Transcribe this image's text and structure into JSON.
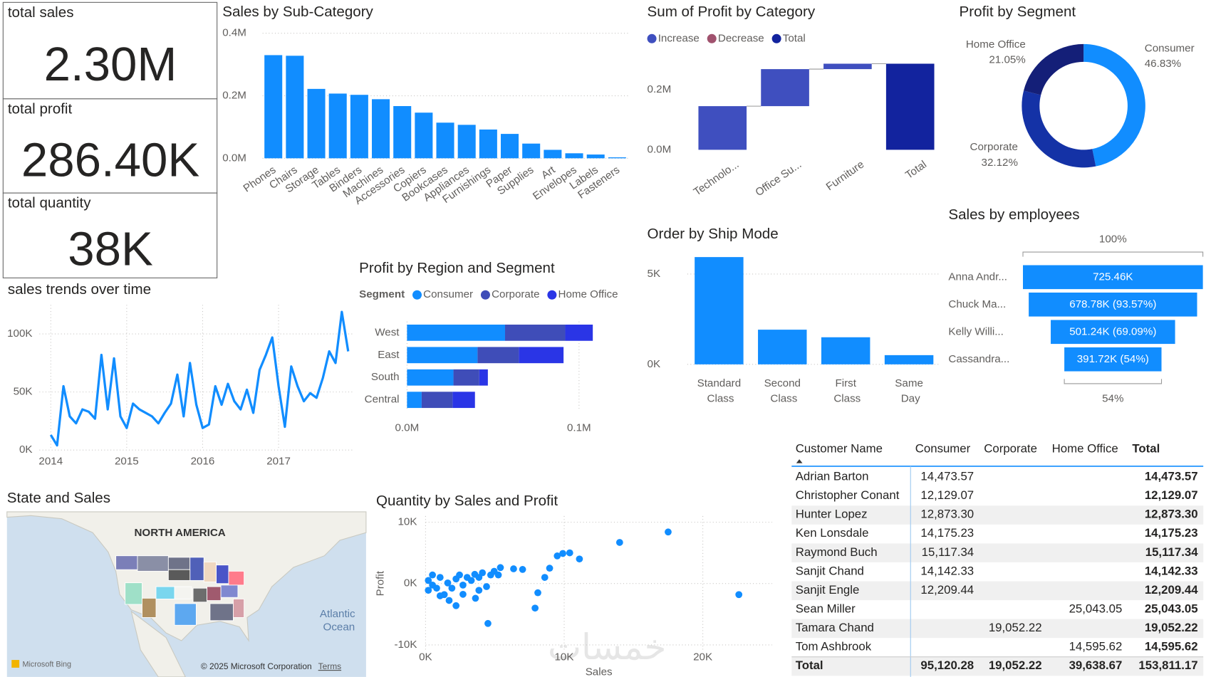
{
  "cards": [
    {
      "label": "total sales",
      "value": "2.30M"
    },
    {
      "label": "total profit",
      "value": "286.40K"
    },
    {
      "label": "total quantity",
      "value": "38K"
    }
  ],
  "watermark": "خمسات",
  "chart_data": [
    {
      "type": "bar",
      "title": "Sales by Sub-Category",
      "color": "#118dff",
      "grid": true,
      "categories": [
        "Phones",
        "Chairs",
        "Storage",
        "Tables",
        "Binders",
        "Machines",
        "Accessories",
        "Copiers",
        "Bookcases",
        "Appliances",
        "Furnishings",
        "Paper",
        "Supplies",
        "Art",
        "Envelopes",
        "Labels",
        "Fasteners"
      ],
      "values": [
        330000,
        328000,
        222000,
        207000,
        203000,
        189000,
        167000,
        146000,
        114000,
        107000,
        92000,
        78000,
        47000,
        27000,
        16000,
        12000,
        3000
      ],
      "ylim": [
        0,
        400000
      ],
      "yticks": [
        {
          "value": 0,
          "label": "0.0M"
        },
        {
          "value": 200000,
          "label": "0.2M"
        },
        {
          "value": 400000,
          "label": "0.4M"
        }
      ]
    },
    {
      "type": "waterfall",
      "title": "Sum of Profit by Category",
      "grid": false,
      "legend": [
        {
          "name": "Increase",
          "color": "#3f4fbf"
        },
        {
          "name": "Decrease",
          "color": "#a0526e"
        },
        {
          "name": "Total",
          "color": "#12239e"
        }
      ],
      "categories": [
        "Technolo...",
        "Office Su...",
        "Furniture",
        "Total"
      ],
      "values": [
        145000,
        123000,
        18000,
        286000
      ],
      "ylim": [
        0,
        300000
      ],
      "yticks": [
        {
          "value": 0,
          "label": "0.0M"
        },
        {
          "value": 200000,
          "label": "0.2M"
        }
      ]
    },
    {
      "type": "donut",
      "title": "Profit by Segment",
      "categories": [
        "Consumer",
        "Corporate",
        "Home Office"
      ],
      "values": [
        46.83,
        32.12,
        21.05
      ],
      "value_labels": [
        "46.83%",
        "32.12%",
        "21.05%"
      ],
      "colors": [
        "#118dff",
        "#1432a6",
        "#141f78"
      ]
    },
    {
      "type": "line",
      "title": "sales trends over time",
      "color": "#118dff",
      "grid": true,
      "x": [
        2014,
        2014.083,
        2014.167,
        2014.25,
        2014.333,
        2014.417,
        2014.5,
        2014.583,
        2014.667,
        2014.75,
        2014.833,
        2014.917,
        2015,
        2015.083,
        2015.167,
        2015.25,
        2015.333,
        2015.417,
        2015.5,
        2015.583,
        2015.667,
        2015.75,
        2015.833,
        2015.917,
        2016,
        2016.083,
        2016.167,
        2016.25,
        2016.333,
        2016.417,
        2016.5,
        2016.583,
        2016.667,
        2016.75,
        2016.833,
        2016.917,
        2017,
        2017.083,
        2017.167,
        2017.25,
        2017.333,
        2017.417,
        2017.5,
        2017.583,
        2017.667,
        2017.75,
        2017.833,
        2017.917
      ],
      "values": [
        13000,
        4000,
        55000,
        29000,
        23000,
        35000,
        33000,
        27000,
        82000,
        35000,
        79000,
        29000,
        19000,
        40000,
        35000,
        32000,
        29000,
        23000,
        32000,
        40000,
        65000,
        29000,
        75000,
        39000,
        19000,
        22000,
        55000,
        39000,
        57000,
        42000,
        35000,
        52000,
        32000,
        69000,
        82000,
        97000,
        55000,
        20000,
        72000,
        55000,
        42000,
        49000,
        45000,
        62000,
        85000,
        75000,
        119000,
        85000
      ],
      "xlim": [
        2013.85,
        2018
      ],
      "xticks": [
        2014,
        2015,
        2016,
        2017
      ],
      "ylim": [
        0,
        125000
      ],
      "yticks": [
        {
          "value": 0,
          "label": "0K"
        },
        {
          "value": 50000,
          "label": "50K"
        },
        {
          "value": 100000,
          "label": "100K"
        }
      ]
    },
    {
      "type": "bar",
      "horizontal": true,
      "stacked": true,
      "title": "Profit by Region and Segment",
      "legend_title": "Segment",
      "grid": true,
      "categories": [
        "West",
        "East",
        "South",
        "Central"
      ],
      "series": [
        {
          "name": "Consumer",
          "color": "#118dff",
          "values": [
            57000,
            41000,
            27000,
            8500
          ]
        },
        {
          "name": "Corporate",
          "color": "#3f4db8",
          "values": [
            35000,
            24000,
            15000,
            18000
          ]
        },
        {
          "name": "Home Office",
          "color": "#2a35e6",
          "values": [
            16000,
            26000,
            5000,
            13000
          ]
        }
      ],
      "xlim": [
        0,
        110000
      ],
      "xticks": [
        {
          "value": 0,
          "label": "0.0M"
        },
        {
          "value": 100000,
          "label": "0.1M"
        }
      ]
    },
    {
      "type": "bar",
      "title": "Order by Ship Mode",
      "color": "#118dff",
      "grid": true,
      "categories": [
        "Standard Class",
        "Second Class",
        "First Class",
        "Same Day"
      ],
      "values": [
        5940,
        1920,
        1500,
        510
      ],
      "ylim": [
        0,
        6000
      ],
      "yticks": [
        {
          "value": 0,
          "label": "0K"
        },
        {
          "value": 5000,
          "label": "5K"
        }
      ]
    },
    {
      "type": "funnel",
      "title": "Sales by employees",
      "color": "#118dff",
      "top_label": "100%",
      "bottom_label": "54%",
      "categories": [
        "Anna Andr...",
        "Chuck Ma...",
        "Kelly Willi...",
        "Cassandra..."
      ],
      "values": [
        725460,
        678780,
        501240,
        391720
      ],
      "value_labels": [
        "725.46K",
        "678.78K (93.57%)",
        "501.24K (69.09%)",
        "391.72K (54%)"
      ]
    },
    {
      "type": "scatter",
      "title": "Quantity by Sales and Profit",
      "x_label": "Sales",
      "y_label": "Profit",
      "color": "#118dff",
      "grid": true,
      "x": [
        17500,
        22600,
        14000,
        11100,
        10400,
        9900,
        9500,
        8950,
        8600,
        8100,
        7900,
        7000,
        6350,
        5400,
        4500,
        2200,
        3600,
        200,
        500,
        800,
        1050,
        1350,
        1600,
        1900,
        2200,
        2450,
        2700,
        3000,
        3300,
        3550,
        3850,
        4100,
        4400,
        4700,
        4950,
        5250,
        500,
        1050,
        1700,
        2700,
        3850,
        200
      ],
      "values": [
        8400,
        -1800,
        6700,
        4000,
        5000,
        4900,
        4500,
        2500,
        1000,
        -1500,
        -4000,
        2300,
        2400,
        2600,
        -6500,
        -3600,
        -2400,
        500,
        -250,
        -750,
        1000,
        -1800,
        100,
        -750,
        750,
        1400,
        -250,
        1000,
        500,
        1500,
        1000,
        1750,
        -500,
        1400,
        2000,
        1400,
        1400,
        -2000,
        -2750,
        -1750,
        -1100,
        -1100
      ],
      "xlim": [
        0,
        25000
      ],
      "xticks": [
        {
          "value": 0,
          "label": "0K"
        },
        {
          "value": 10000,
          "label": "10K"
        },
        {
          "value": 20000,
          "label": "20K"
        }
      ],
      "ylim": [
        -11000,
        11000
      ],
      "yticks": [
        {
          "value": -10000,
          "label": "-10K"
        },
        {
          "value": 0,
          "label": "0K"
        },
        {
          "value": 10000,
          "label": "10K"
        }
      ]
    },
    {
      "type": "map",
      "title": "State and Sales",
      "region_label": "NORTH AMERICA",
      "ocean_label": "Atlantic Ocean",
      "copyright": "© 2025 Microsoft Corporation",
      "terms": "Terms",
      "logo": "Microsoft Bing"
    }
  ],
  "table": {
    "headers": [
      "Customer Name",
      "Consumer",
      "Corporate",
      "Home Office",
      "Total"
    ],
    "rows": [
      [
        "Adrian Barton",
        "14,473.57",
        null,
        null,
        "14,473.57"
      ],
      [
        "Christopher Conant",
        "12,129.07",
        null,
        null,
        "12,129.07"
      ],
      [
        "Hunter Lopez",
        "12,873.30",
        null,
        null,
        "12,873.30"
      ],
      [
        "Ken Lonsdale",
        "14,175.23",
        null,
        null,
        "14,175.23"
      ],
      [
        "Raymond Buch",
        "15,117.34",
        null,
        null,
        "15,117.34"
      ],
      [
        "Sanjit Chand",
        "14,142.33",
        null,
        null,
        "14,142.33"
      ],
      [
        "Sanjit Engle",
        "12,209.44",
        null,
        null,
        "12,209.44"
      ],
      [
        "Sean Miller",
        null,
        null,
        "25,043.05",
        "25,043.05"
      ],
      [
        "Tamara Chand",
        null,
        "19,052.22",
        null,
        "19,052.22"
      ],
      [
        "Tom Ashbrook",
        null,
        null,
        "14,595.62",
        "14,595.62"
      ]
    ],
    "total": [
      "Total",
      "95,120.28",
      "19,052.22",
      "39,638.67",
      "153,811.17"
    ]
  }
}
